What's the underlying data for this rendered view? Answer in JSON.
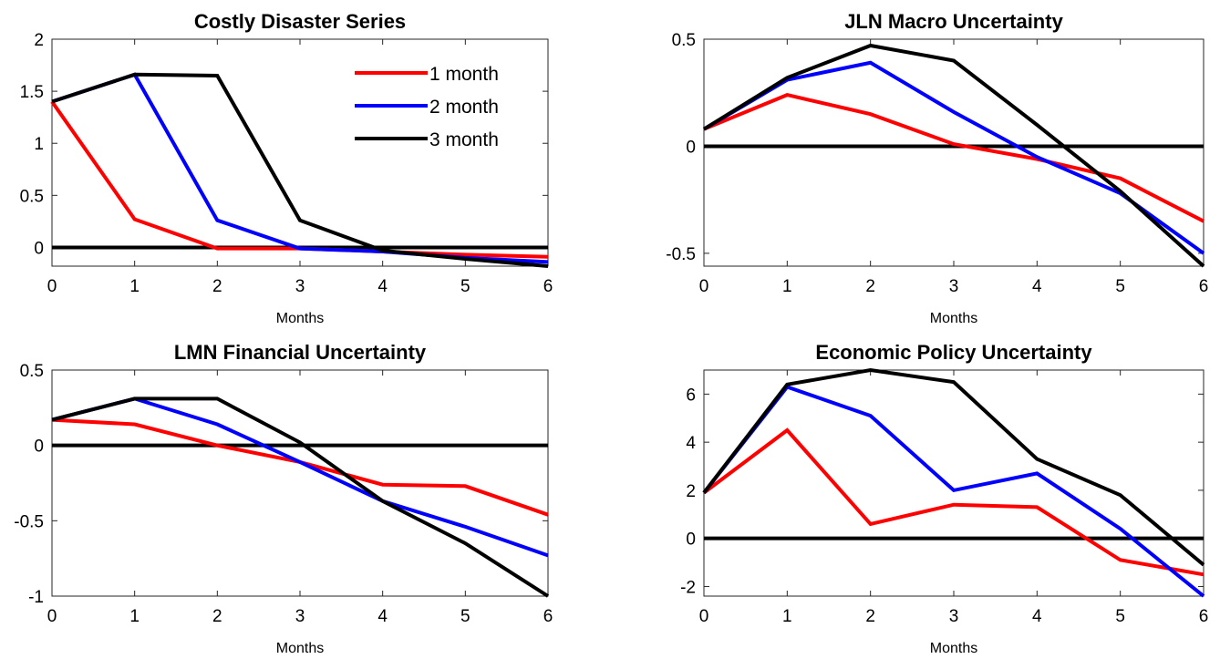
{
  "colors": {
    "1 month": "#ff0000",
    "2 month": "#0000ff",
    "3 month": "#000000",
    "zero": "#000000"
  },
  "legend": {
    "panel": 0,
    "placement": "top-right",
    "entries": [
      "1 month",
      "2 month",
      "3 month"
    ]
  },
  "chart_data": [
    {
      "type": "line",
      "title": "Costly Disaster Series",
      "xlabel": "Months",
      "ylabel": "",
      "x": [
        0,
        1,
        2,
        3,
        4,
        5,
        6
      ],
      "xlim": [
        0,
        6
      ],
      "ylim": [
        -0.18,
        2
      ],
      "yticks": [
        0,
        0.5,
        1,
        1.5,
        2
      ],
      "ytick_labels": [
        "0",
        "0.5",
        "1",
        "1.5",
        "2"
      ],
      "xticks": [
        0,
        1,
        2,
        3,
        4,
        5,
        6
      ],
      "xtick_labels": [
        "0",
        "1",
        "2",
        "3",
        "4",
        "5",
        "6"
      ],
      "zero_line": true,
      "grid": false,
      "series": [
        {
          "name": "1 month",
          "values": [
            1.4,
            0.27,
            -0.01,
            -0.01,
            -0.04,
            -0.07,
            -0.09
          ]
        },
        {
          "name": "2 month",
          "values": [
            1.4,
            1.66,
            0.26,
            -0.01,
            -0.04,
            -0.1,
            -0.14
          ]
        },
        {
          "name": "3 month",
          "values": [
            1.4,
            1.66,
            1.65,
            0.26,
            -0.03,
            -0.11,
            -0.18
          ]
        }
      ]
    },
    {
      "type": "line",
      "title": "JLN Macro Uncertainty",
      "xlabel": "Months",
      "ylabel": "",
      "x": [
        0,
        1,
        2,
        3,
        4,
        5,
        6
      ],
      "xlim": [
        0,
        6
      ],
      "ylim": [
        -0.56,
        0.5
      ],
      "yticks": [
        -0.5,
        0,
        0.5
      ],
      "ytick_labels": [
        "-0.5",
        "0",
        "0.5"
      ],
      "xticks": [
        0,
        1,
        2,
        3,
        4,
        5,
        6
      ],
      "xtick_labels": [
        "0",
        "1",
        "2",
        "3",
        "4",
        "5",
        "6"
      ],
      "zero_line": true,
      "grid": false,
      "series": [
        {
          "name": "1 month",
          "values": [
            0.08,
            0.24,
            0.15,
            0.01,
            -0.06,
            -0.15,
            -0.35
          ]
        },
        {
          "name": "2 month",
          "values": [
            0.08,
            0.31,
            0.39,
            0.16,
            -0.05,
            -0.22,
            -0.5
          ]
        },
        {
          "name": "3 month",
          "values": [
            0.08,
            0.32,
            0.47,
            0.4,
            0.1,
            -0.21,
            -0.56
          ]
        }
      ]
    },
    {
      "type": "line",
      "title": "LMN Financial Uncertainty",
      "xlabel": "Months",
      "ylabel": "",
      "x": [
        0,
        1,
        2,
        3,
        4,
        5,
        6
      ],
      "xlim": [
        0,
        6
      ],
      "ylim": [
        -1,
        0.5
      ],
      "yticks": [
        -1,
        -0.5,
        0,
        0.5
      ],
      "ytick_labels": [
        "-1",
        "-0.5",
        "0",
        "0.5"
      ],
      "xticks": [
        0,
        1,
        2,
        3,
        4,
        5,
        6
      ],
      "xtick_labels": [
        "0",
        "1",
        "2",
        "3",
        "4",
        "5",
        "6"
      ],
      "zero_line": true,
      "grid": false,
      "series": [
        {
          "name": "1 month",
          "values": [
            0.17,
            0.14,
            0.0,
            -0.11,
            -0.26,
            -0.27,
            -0.46
          ]
        },
        {
          "name": "2 month",
          "values": [
            0.17,
            0.31,
            0.14,
            -0.11,
            -0.37,
            -0.54,
            -0.73
          ]
        },
        {
          "name": "3 month",
          "values": [
            0.17,
            0.31,
            0.31,
            0.02,
            -0.37,
            -0.65,
            -1.0
          ]
        }
      ]
    },
    {
      "type": "line",
      "title": "Economic Policy Uncertainty",
      "xlabel": "Months",
      "ylabel": "",
      "x": [
        0,
        1,
        2,
        3,
        4,
        5,
        6
      ],
      "xlim": [
        0,
        6
      ],
      "ylim": [
        -2.4,
        7
      ],
      "yticks": [
        -2,
        0,
        2,
        4,
        6
      ],
      "ytick_labels": [
        "-2",
        "0",
        "2",
        "4",
        "6"
      ],
      "xticks": [
        0,
        1,
        2,
        3,
        4,
        5,
        6
      ],
      "xtick_labels": [
        "0",
        "1",
        "2",
        "3",
        "4",
        "5",
        "6"
      ],
      "zero_line": true,
      "grid": false,
      "series": [
        {
          "name": "1 month",
          "values": [
            1.9,
            4.5,
            0.6,
            1.4,
            1.3,
            -0.9,
            -1.5
          ]
        },
        {
          "name": "2 month",
          "values": [
            1.9,
            6.3,
            5.1,
            2.0,
            2.7,
            0.4,
            -2.4
          ]
        },
        {
          "name": "3 month",
          "values": [
            1.9,
            6.4,
            7.0,
            6.5,
            3.3,
            1.8,
            -1.1
          ]
        }
      ]
    }
  ]
}
